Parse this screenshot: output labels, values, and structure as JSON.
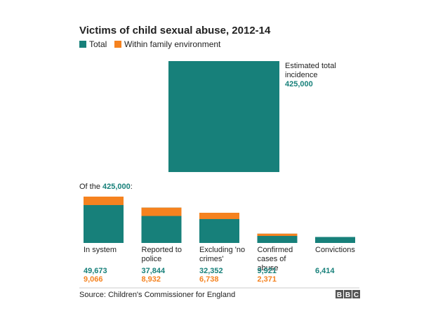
{
  "chart_data": {
    "type": "bar",
    "title": "Victims of child sexual abuse, 2012-14",
    "categories": [
      "In system",
      "Reported to police",
      "Excluding 'no crimes'",
      "Confirmed cases of abuse",
      "Convictions"
    ],
    "series": [
      {
        "name": "Total",
        "color": "#17807a",
        "values": [
          49673,
          37844,
          32352,
          9921,
          6414
        ],
        "value_labels": [
          "49,673",
          "37,844",
          "32,352",
          "9,921",
          "6,414"
        ]
      },
      {
        "name": "Within family environment",
        "color": "#f5821f",
        "values": [
          9066,
          8932,
          6738,
          2371,
          null
        ],
        "value_labels": [
          "9,066",
          "8,932",
          "6,738",
          "2,371",
          null
        ]
      }
    ],
    "estimate": {
      "label": "Estimated total incidence",
      "value": 425000,
      "value_label": "425,000"
    },
    "subheading": {
      "prefix": "Of the",
      "suffix": ":"
    },
    "source": "Source: Children's Commissioner for England",
    "logo": [
      "B",
      "B",
      "C"
    ]
  }
}
